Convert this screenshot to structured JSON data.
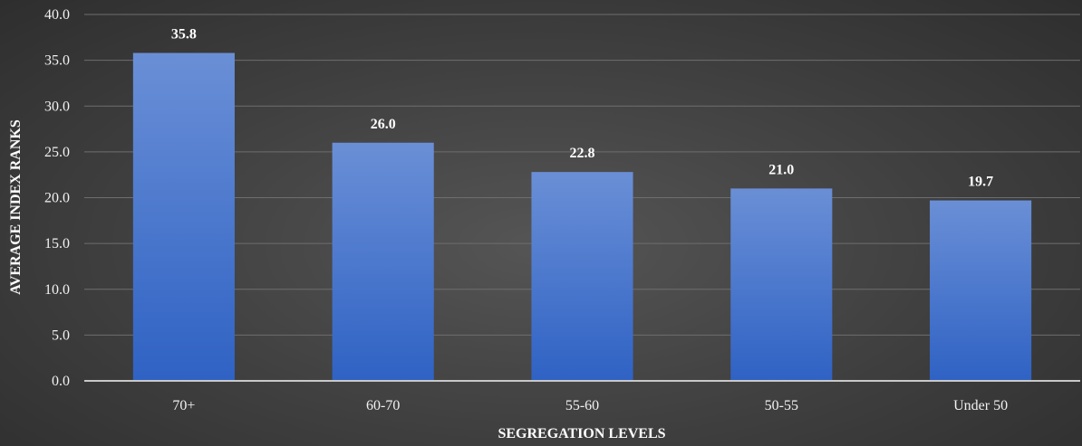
{
  "chart_data": {
    "type": "bar",
    "title": "",
    "xlabel": "SEGREGATION LEVELS",
    "ylabel": "AVERAGE INDEX RANKS",
    "categories": [
      "70+",
      "60-70",
      "55-60",
      "50-55",
      "Under 50"
    ],
    "values": [
      35.8,
      26.0,
      22.8,
      21.0,
      19.7
    ],
    "data_labels": [
      "35.8",
      "26.0",
      "22.8",
      "21.0",
      "19.7"
    ],
    "ylim": [
      0,
      40
    ],
    "yticks": [
      "0.0",
      "5.0",
      "10.0",
      "15.0",
      "20.0",
      "25.0",
      "30.0",
      "35.0",
      "40.0"
    ],
    "grid": true,
    "legend": "none",
    "colors": {
      "bar_top": "#6a8fd6",
      "bar_bottom": "#2f62c4",
      "grid": "#6e6e6e",
      "axis": "#c8c8c8",
      "text": "#f2f2f2"
    }
  }
}
